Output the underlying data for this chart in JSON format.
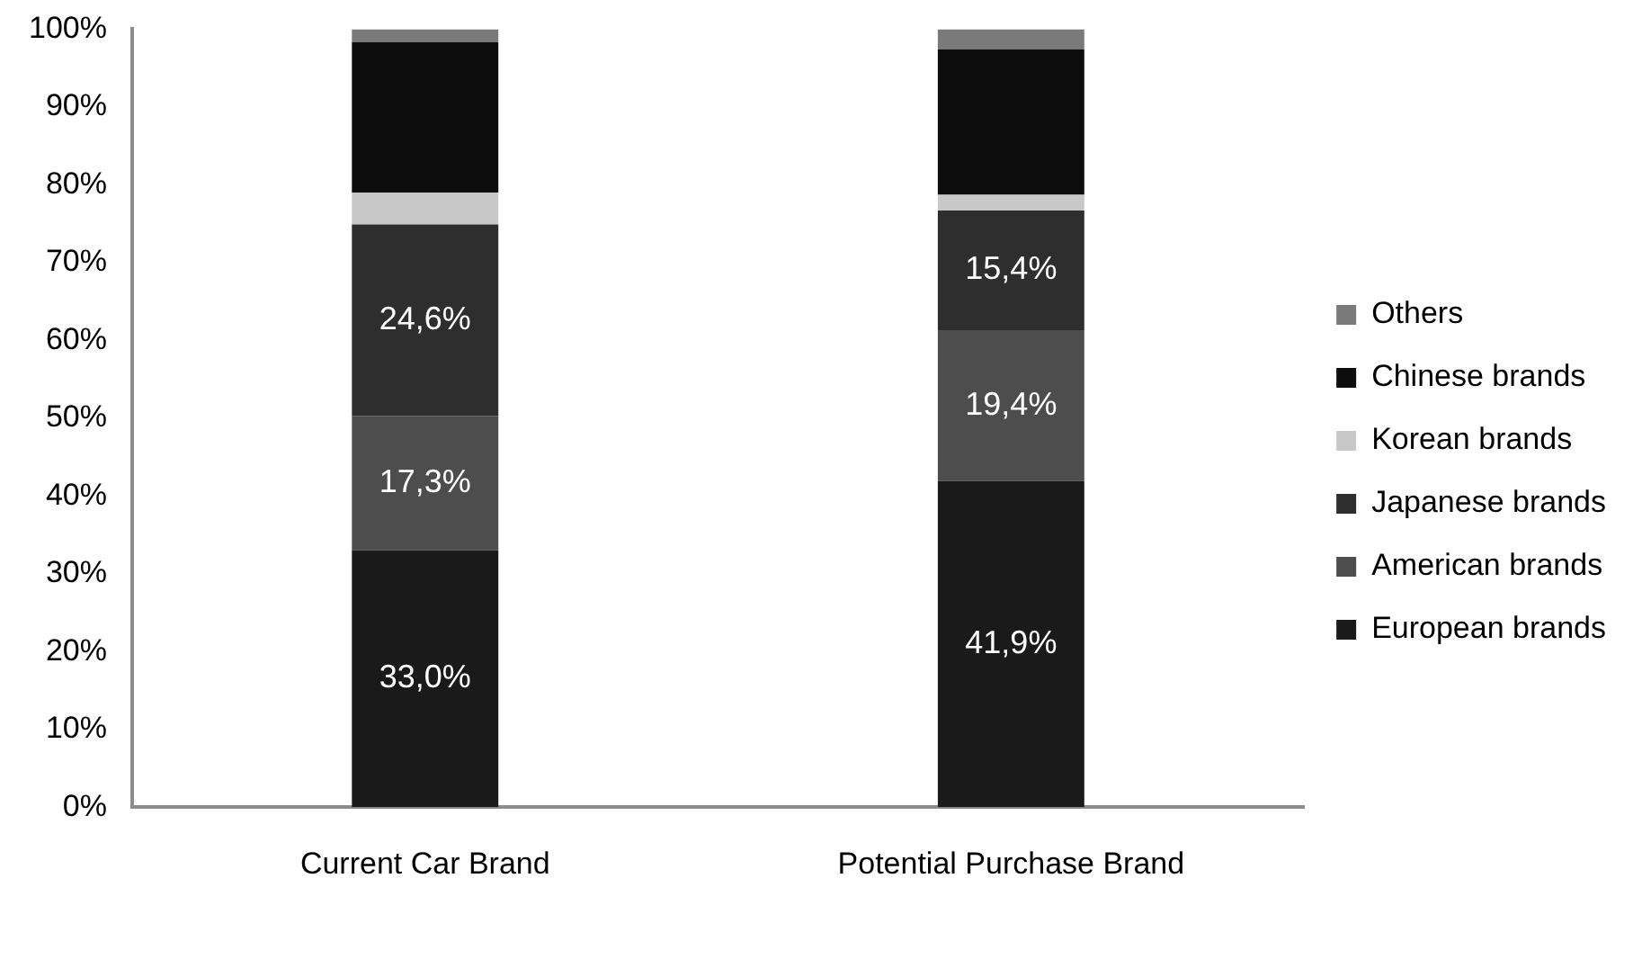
{
  "chart_data": {
    "type": "bar",
    "stacked": true,
    "categories": [
      "Current Car Brand",
      "Potential Purchase Brand"
    ],
    "series": [
      {
        "name": "European brands",
        "color": "#1a1a1a",
        "values": [
          33.0,
          41.9
        ],
        "value_labels": [
          "33,0%",
          "41,9%"
        ]
      },
      {
        "name": "American brands",
        "color": "#4d4d4d",
        "values": [
          17.3,
          19.4
        ],
        "value_labels": [
          "17,3%",
          "19,4%"
        ]
      },
      {
        "name": "Japanese brands",
        "color": "#2e2e2e",
        "values": [
          24.6,
          15.4
        ],
        "value_labels": [
          "24,6%",
          "15,4%"
        ]
      },
      {
        "name": "Korean brands",
        "color": "#c8c8c8",
        "values": [
          4.1,
          2.0
        ],
        "value_labels": [
          null,
          null
        ]
      },
      {
        "name": "Chinese brands",
        "color": "#0d0d0d",
        "values": [
          19.3,
          18.7
        ],
        "value_labels": [
          null,
          null
        ]
      },
      {
        "name": "Others",
        "color": "#7a7a7a",
        "values": [
          1.7,
          2.6
        ],
        "value_labels": [
          null,
          null
        ]
      }
    ],
    "ylim": [
      0,
      100
    ],
    "yticks": [
      {
        "value": 0,
        "label": "0%"
      },
      {
        "value": 10,
        "label": "10%"
      },
      {
        "value": 20,
        "label": "20%"
      },
      {
        "value": 30,
        "label": "30%"
      },
      {
        "value": 40,
        "label": "40%"
      },
      {
        "value": 50,
        "label": "50%"
      },
      {
        "value": 60,
        "label": "60%"
      },
      {
        "value": 70,
        "label": "70%"
      },
      {
        "value": 80,
        "label": "80%"
      },
      {
        "value": 90,
        "label": "90%"
      },
      {
        "value": 100,
        "label": "100%"
      }
    ],
    "grid": false,
    "legend": "right"
  }
}
